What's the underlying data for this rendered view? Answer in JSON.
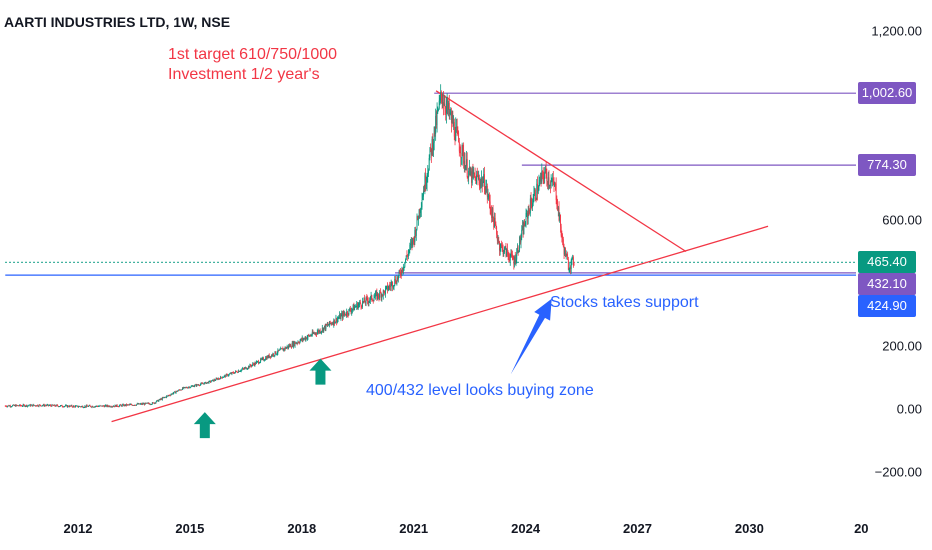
{
  "header": {
    "title": "AARTI INDUSTRIES LTD, 1W, NSE"
  },
  "annotations": {
    "target_line1": "1st target 610/750/1000",
    "target_line2": "Investment 1/2 year's",
    "support": "Stocks takes support",
    "buying_zone": "400/432 level looks buying zone"
  },
  "colors": {
    "up": "#089981",
    "down": "#f23645",
    "trendline": "#f23645",
    "target_line": "#7e57c2",
    "support_line": "#2962ff",
    "current_dotted": "#089981"
  },
  "chart_data": {
    "type": "candlestick",
    "title": "AARTI INDUSTRIES LTD, 1W, NSE",
    "x_ticks": [
      "2012",
      "2015",
      "2018",
      "2021",
      "2024",
      "2027",
      "2030",
      "20"
    ],
    "y_ticks": [
      "1,200.00",
      "600.00",
      "200.00",
      "0.00",
      "−200.00"
    ],
    "ylim": [
      -240,
      1250
    ],
    "xlim": [
      2010.05,
      2033.35
    ],
    "price_badges": [
      {
        "label": "1,002.60",
        "value": 1002.6,
        "color": "#7e57c2"
      },
      {
        "label": "774.30",
        "value": 774.3,
        "color": "#7e57c2"
      },
      {
        "label": "465.40",
        "value": 465.4,
        "color": "#089981"
      },
      {
        "label": "432.10",
        "value": 432.1,
        "color": "#7e57c2"
      },
      {
        "label": "424.90",
        "value": 424.9,
        "color": "#2962ff"
      }
    ],
    "price_path": [
      [
        2010.05,
        10
      ],
      [
        2011,
        12
      ],
      [
        2012,
        8
      ],
      [
        2013,
        10
      ],
      [
        2014,
        18
      ],
      [
        2014.8,
        65
      ],
      [
        2015.5,
        85
      ],
      [
        2016.5,
        130
      ],
      [
        2017.5,
        190
      ],
      [
        2018.5,
        250
      ],
      [
        2019.5,
        330
      ],
      [
        2020.2,
        370
      ],
      [
        2020.6,
        420
      ],
      [
        2021,
        540
      ],
      [
        2021.35,
        750
      ],
      [
        2021.75,
        1000
      ],
      [
        2022,
        920
      ],
      [
        2022.5,
        740
      ],
      [
        2022.9,
        720
      ],
      [
        2023.3,
        520
      ],
      [
        2023.7,
        470
      ],
      [
        2024.1,
        640
      ],
      [
        2024.5,
        750
      ],
      [
        2024.8,
        700
      ],
      [
        2025.0,
        520
      ],
      [
        2025.15,
        455
      ],
      [
        2025.3,
        470
      ]
    ],
    "horizontal_levels": [
      {
        "value": 1002.6,
        "from": 2021.55,
        "style": "solid",
        "color": "#7e57c2"
      },
      {
        "value": 774.3,
        "from": 2023.9,
        "style": "solid",
        "color": "#7e57c2"
      },
      {
        "value": 465.4,
        "from": 2010.05,
        "style": "dotted",
        "color": "#089981"
      },
      {
        "value": 432.1,
        "from": 2020.5,
        "style": "solid",
        "color": "#7e57c2"
      },
      {
        "value": 424.9,
        "from": 2010.05,
        "style": "solid",
        "color": "#2962ff"
      }
    ],
    "trendlines": [
      {
        "x1": 2012.9,
        "y1": -40,
        "x2": 2030.5,
        "y2": 580
      },
      {
        "x1": 2021.6,
        "y1": 1010,
        "x2": 2028.3,
        "y2": 500
      }
    ],
    "arrows": [
      {
        "x": 2015.4,
        "tip": -10,
        "direction": "up"
      },
      {
        "x": 2018.5,
        "tip": 160,
        "direction": "up"
      }
    ],
    "callout_arrow": {
      "from": [
        2023.6,
        110
      ],
      "to": [
        2024.7,
        350
      ]
    }
  }
}
